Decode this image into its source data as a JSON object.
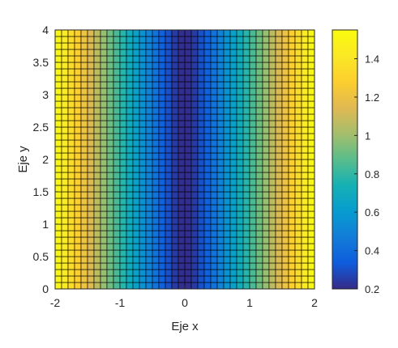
{
  "chart_data": {
    "type": "heatmap",
    "title": "",
    "xlabel": "Eje x",
    "ylabel": "Eje y",
    "xlim": [
      -2,
      2
    ],
    "ylim": [
      0,
      4
    ],
    "x_ticks": [
      -2,
      -1,
      0,
      1,
      2
    ],
    "x_tick_labels": [
      "-2",
      "-1",
      "0",
      "1",
      "2"
    ],
    "y_ticks": [
      0,
      0.5,
      1,
      1.5,
      2,
      2.5,
      3,
      3.5,
      4
    ],
    "y_tick_labels": [
      "0",
      "0.5",
      "1",
      "1.5",
      "2",
      "2.5",
      "3",
      "3.5",
      "4"
    ],
    "grid_step": 0.1,
    "cell_size": 0.1,
    "function": "z depends on x only; minimum 0.2 at x = 0, maximum about 1.55 at x = ±2",
    "x": [
      -2.0,
      -1.9,
      -1.8,
      -1.7,
      -1.6,
      -1.5,
      -1.4,
      -1.3,
      -1.2,
      -1.1,
      -1.0,
      -0.9,
      -0.8,
      -0.7,
      -0.6,
      -0.5,
      -0.4,
      -0.3,
      -0.2,
      -0.1,
      0.0,
      0.1,
      0.2,
      0.3,
      0.4,
      0.5,
      0.6,
      0.7,
      0.8,
      0.9,
      1.0,
      1.1,
      1.2,
      1.3,
      1.4,
      1.5,
      1.6,
      1.7,
      1.8,
      1.9,
      2.0
    ],
    "z": [
      1.55,
      1.47,
      1.4,
      1.32,
      1.25,
      1.17,
      1.1,
      1.02,
      0.95,
      0.88,
      0.81,
      0.74,
      0.67,
      0.6,
      0.53,
      0.46,
      0.39,
      0.33,
      0.27,
      0.22,
      0.2,
      0.22,
      0.27,
      0.33,
      0.39,
      0.46,
      0.53,
      0.6,
      0.67,
      0.74,
      0.81,
      0.88,
      0.95,
      1.02,
      1.1,
      1.17,
      1.25,
      1.32,
      1.4,
      1.47,
      1.55
    ],
    "colorbar": {
      "colormap": "parula",
      "limits": [
        0.2,
        1.55
      ],
      "ticks": [
        0.2,
        0.4,
        0.6,
        0.8,
        1,
        1.2,
        1.4
      ],
      "tick_labels": [
        "0.2",
        "0.4",
        "0.6",
        "0.8",
        "1",
        "1.2",
        "1.4"
      ]
    },
    "edge_color": "#000000",
    "colors": {
      "axis": "#262626",
      "background": "#ffffff"
    }
  }
}
